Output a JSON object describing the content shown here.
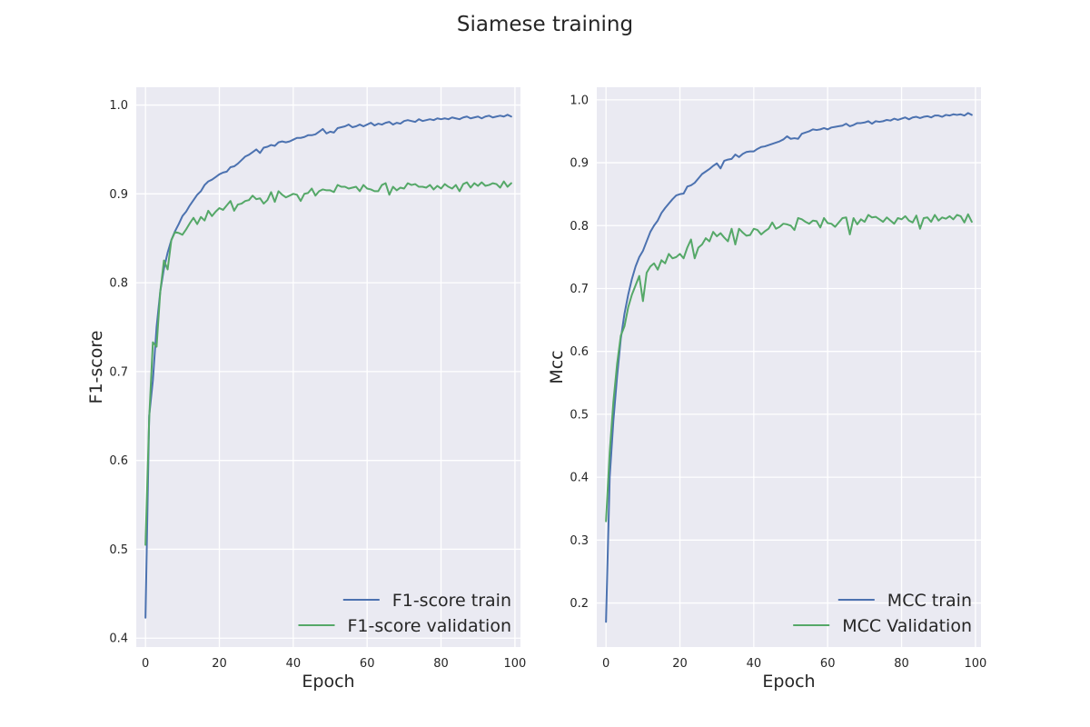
{
  "figure": {
    "title": "Siamese training"
  },
  "chart_data": [
    {
      "type": "line",
      "title": "",
      "xlabel": "Epoch",
      "ylabel": "F1-score",
      "xlim": [
        -2.5,
        101.5
      ],
      "ylim": [
        0.39,
        1.02
      ],
      "xticks": [
        0,
        20,
        40,
        60,
        80,
        100
      ],
      "yticks": [
        0.4,
        0.5,
        0.6,
        0.7,
        0.8,
        0.9,
        1.0
      ],
      "ytick_labels": [
        "0.4",
        "0.5",
        "0.6",
        "0.7",
        "0.8",
        "0.9",
        "1.0"
      ],
      "grid": true,
      "legend_position": "lower-right",
      "series": [
        {
          "name": "F1-score train",
          "color": "#4c72b0",
          "x": [
            0,
            1,
            2,
            3,
            4,
            5,
            6,
            7,
            8,
            9,
            10,
            11,
            12,
            13,
            14,
            15,
            16,
            17,
            18,
            19,
            20,
            21,
            22,
            23,
            24,
            25,
            26,
            27,
            28,
            29,
            30,
            31,
            32,
            33,
            34,
            35,
            36,
            37,
            38,
            39,
            40,
            41,
            42,
            43,
            44,
            45,
            46,
            47,
            48,
            49,
            50,
            51,
            52,
            53,
            54,
            55,
            56,
            57,
            58,
            59,
            60,
            61,
            62,
            63,
            64,
            65,
            66,
            67,
            68,
            69,
            70,
            71,
            72,
            73,
            74,
            75,
            76,
            77,
            78,
            79,
            80,
            81,
            82,
            83,
            84,
            85,
            86,
            87,
            88,
            89,
            90,
            91,
            92,
            93,
            94,
            95,
            96,
            97,
            98,
            99
          ],
          "y": [
            0.423,
            0.65,
            0.69,
            0.75,
            0.79,
            0.816,
            0.834,
            0.848,
            0.858,
            0.866,
            0.875,
            0.88,
            0.887,
            0.893,
            0.899,
            0.903,
            0.91,
            0.914,
            0.916,
            0.919,
            0.922,
            0.924,
            0.925,
            0.93,
            0.931,
            0.934,
            0.938,
            0.942,
            0.944,
            0.947,
            0.95,
            0.946,
            0.952,
            0.953,
            0.955,
            0.954,
            0.958,
            0.959,
            0.958,
            0.959,
            0.961,
            0.963,
            0.963,
            0.964,
            0.966,
            0.966,
            0.967,
            0.97,
            0.973,
            0.968,
            0.97,
            0.969,
            0.974,
            0.975,
            0.976,
            0.978,
            0.975,
            0.976,
            0.978,
            0.976,
            0.978,
            0.98,
            0.977,
            0.979,
            0.978,
            0.98,
            0.981,
            0.978,
            0.98,
            0.979,
            0.982,
            0.983,
            0.982,
            0.981,
            0.984,
            0.982,
            0.983,
            0.984,
            0.983,
            0.985,
            0.984,
            0.985,
            0.984,
            0.986,
            0.985,
            0.984,
            0.986,
            0.987,
            0.985,
            0.986,
            0.987,
            0.985,
            0.987,
            0.988,
            0.986,
            0.987,
            0.988,
            0.987,
            0.989,
            0.987
          ]
        },
        {
          "name": "F1-score validation",
          "color": "#55a868",
          "x": [
            0,
            1,
            2,
            3,
            4,
            5,
            6,
            7,
            8,
            9,
            10,
            11,
            12,
            13,
            14,
            15,
            16,
            17,
            18,
            19,
            20,
            21,
            22,
            23,
            24,
            25,
            26,
            27,
            28,
            29,
            30,
            31,
            32,
            33,
            34,
            35,
            36,
            37,
            38,
            39,
            40,
            41,
            42,
            43,
            44,
            45,
            46,
            47,
            48,
            49,
            50,
            51,
            52,
            53,
            54,
            55,
            56,
            57,
            58,
            59,
            60,
            61,
            62,
            63,
            64,
            65,
            66,
            67,
            68,
            69,
            70,
            71,
            72,
            73,
            74,
            75,
            76,
            77,
            78,
            79,
            80,
            81,
            82,
            83,
            84,
            85,
            86,
            87,
            88,
            89,
            90,
            91,
            92,
            93,
            94,
            95,
            96,
            97,
            98,
            99
          ],
          "y": [
            0.505,
            0.647,
            0.733,
            0.728,
            0.79,
            0.825,
            0.815,
            0.848,
            0.857,
            0.856,
            0.854,
            0.86,
            0.867,
            0.873,
            0.866,
            0.874,
            0.87,
            0.881,
            0.875,
            0.88,
            0.884,
            0.882,
            0.887,
            0.892,
            0.881,
            0.888,
            0.889,
            0.892,
            0.893,
            0.898,
            0.894,
            0.895,
            0.889,
            0.893,
            0.902,
            0.891,
            0.903,
            0.899,
            0.896,
            0.898,
            0.9,
            0.899,
            0.892,
            0.9,
            0.901,
            0.906,
            0.898,
            0.903,
            0.905,
            0.904,
            0.904,
            0.902,
            0.91,
            0.908,
            0.908,
            0.906,
            0.907,
            0.908,
            0.903,
            0.91,
            0.906,
            0.905,
            0.903,
            0.903,
            0.91,
            0.912,
            0.899,
            0.908,
            0.904,
            0.907,
            0.906,
            0.912,
            0.91,
            0.911,
            0.908,
            0.908,
            0.907,
            0.91,
            0.905,
            0.909,
            0.906,
            0.911,
            0.908,
            0.906,
            0.91,
            0.903,
            0.911,
            0.913,
            0.907,
            0.912,
            0.909,
            0.913,
            0.909,
            0.91,
            0.912,
            0.911,
            0.907,
            0.914,
            0.908,
            0.912
          ]
        }
      ]
    },
    {
      "type": "line",
      "title": "",
      "xlabel": "Epoch",
      "ylabel": "Mcc",
      "xlim": [
        -2.5,
        101.5
      ],
      "ylim": [
        0.13,
        1.02
      ],
      "xticks": [
        0,
        20,
        40,
        60,
        80,
        100
      ],
      "yticks": [
        0.2,
        0.3,
        0.4,
        0.5,
        0.6,
        0.7,
        0.8,
        0.9,
        1.0
      ],
      "ytick_labels": [
        "0.2",
        "0.3",
        "0.4",
        "0.5",
        "0.6",
        "0.7",
        "0.8",
        "0.9",
        "1.0"
      ],
      "grid": true,
      "legend_position": "lower-right",
      "series": [
        {
          "name": "MCC train",
          "color": "#4c72b0",
          "x": [
            0,
            1,
            2,
            3,
            4,
            5,
            6,
            7,
            8,
            9,
            10,
            11,
            12,
            13,
            14,
            15,
            16,
            17,
            18,
            19,
            20,
            21,
            22,
            23,
            24,
            25,
            26,
            27,
            28,
            29,
            30,
            31,
            32,
            33,
            34,
            35,
            36,
            37,
            38,
            39,
            40,
            41,
            42,
            43,
            44,
            45,
            46,
            47,
            48,
            49,
            50,
            51,
            52,
            53,
            54,
            55,
            56,
            57,
            58,
            59,
            60,
            61,
            62,
            63,
            64,
            65,
            66,
            67,
            68,
            69,
            70,
            71,
            72,
            73,
            74,
            75,
            76,
            77,
            78,
            79,
            80,
            81,
            82,
            83,
            84,
            85,
            86,
            87,
            88,
            89,
            90,
            91,
            92,
            93,
            94,
            95,
            96,
            97,
            98,
            99
          ],
          "y": [
            0.17,
            0.4,
            0.49,
            0.56,
            0.62,
            0.66,
            0.69,
            0.715,
            0.735,
            0.75,
            0.76,
            0.775,
            0.79,
            0.8,
            0.808,
            0.82,
            0.828,
            0.835,
            0.842,
            0.848,
            0.85,
            0.851,
            0.862,
            0.864,
            0.868,
            0.875,
            0.882,
            0.886,
            0.89,
            0.895,
            0.899,
            0.891,
            0.903,
            0.905,
            0.906,
            0.913,
            0.909,
            0.914,
            0.917,
            0.918,
            0.918,
            0.922,
            0.925,
            0.926,
            0.928,
            0.93,
            0.932,
            0.934,
            0.937,
            0.942,
            0.938,
            0.939,
            0.938,
            0.946,
            0.948,
            0.95,
            0.953,
            0.952,
            0.953,
            0.955,
            0.953,
            0.956,
            0.957,
            0.958,
            0.959,
            0.962,
            0.958,
            0.96,
            0.963,
            0.963,
            0.964,
            0.966,
            0.962,
            0.966,
            0.965,
            0.966,
            0.968,
            0.967,
            0.97,
            0.968,
            0.97,
            0.972,
            0.969,
            0.972,
            0.973,
            0.971,
            0.973,
            0.974,
            0.972,
            0.975,
            0.975,
            0.973,
            0.976,
            0.975,
            0.977,
            0.976,
            0.977,
            0.975,
            0.979,
            0.976
          ]
        },
        {
          "name": "MCC Validation",
          "color": "#55a868",
          "x": [
            0,
            1,
            2,
            3,
            4,
            5,
            6,
            7,
            8,
            9,
            10,
            11,
            12,
            13,
            14,
            15,
            16,
            17,
            18,
            19,
            20,
            21,
            22,
            23,
            24,
            25,
            26,
            27,
            28,
            29,
            30,
            31,
            32,
            33,
            34,
            35,
            36,
            37,
            38,
            39,
            40,
            41,
            42,
            43,
            44,
            45,
            46,
            47,
            48,
            49,
            50,
            51,
            52,
            53,
            54,
            55,
            56,
            57,
            58,
            59,
            60,
            61,
            62,
            63,
            64,
            65,
            66,
            67,
            68,
            69,
            70,
            71,
            72,
            73,
            74,
            75,
            76,
            77,
            78,
            79,
            80,
            81,
            82,
            83,
            84,
            85,
            86,
            87,
            88,
            89,
            90,
            91,
            92,
            93,
            94,
            95,
            96,
            97,
            98,
            99
          ],
          "y": [
            0.33,
            0.44,
            0.52,
            0.58,
            0.625,
            0.64,
            0.67,
            0.69,
            0.705,
            0.72,
            0.68,
            0.725,
            0.735,
            0.74,
            0.73,
            0.745,
            0.74,
            0.755,
            0.748,
            0.75,
            0.755,
            0.748,
            0.765,
            0.778,
            0.748,
            0.765,
            0.77,
            0.78,
            0.775,
            0.79,
            0.783,
            0.788,
            0.781,
            0.775,
            0.795,
            0.77,
            0.795,
            0.789,
            0.784,
            0.785,
            0.795,
            0.793,
            0.786,
            0.791,
            0.795,
            0.805,
            0.795,
            0.798,
            0.803,
            0.802,
            0.8,
            0.793,
            0.812,
            0.81,
            0.806,
            0.803,
            0.808,
            0.807,
            0.797,
            0.812,
            0.804,
            0.803,
            0.798,
            0.805,
            0.812,
            0.813,
            0.786,
            0.812,
            0.802,
            0.81,
            0.806,
            0.817,
            0.813,
            0.814,
            0.81,
            0.806,
            0.813,
            0.808,
            0.803,
            0.812,
            0.81,
            0.815,
            0.808,
            0.805,
            0.816,
            0.795,
            0.812,
            0.813,
            0.806,
            0.817,
            0.808,
            0.813,
            0.811,
            0.815,
            0.81,
            0.817,
            0.815,
            0.805,
            0.818,
            0.806
          ]
        }
      ]
    }
  ]
}
